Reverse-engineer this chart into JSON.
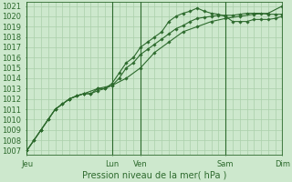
{
  "bg_color": "#cde8cd",
  "grid_color": "#aacfaa",
  "line_color": "#2d6a2d",
  "marker_color": "#2d6a2d",
  "ylabel_ticks": [
    1007,
    1008,
    1009,
    1010,
    1011,
    1012,
    1013,
    1014,
    1015,
    1016,
    1017,
    1018,
    1019,
    1020,
    1021
  ],
  "ylim": [
    1006.6,
    1021.4
  ],
  "xlabel": "Pression niveau de la mer( hPa )",
  "xlabel_fontsize": 7,
  "tick_fontsize": 6,
  "day_labels": [
    "Jeu",
    "Lun",
    "Ven",
    "Sam",
    "Dim"
  ],
  "day_positions": [
    0,
    72,
    96,
    168,
    216
  ],
  "total_hours": 216,
  "series1_x": [
    0,
    6,
    12,
    18,
    24,
    30,
    36,
    42,
    48,
    54,
    60,
    66,
    72,
    78,
    84,
    90,
    96,
    102,
    108,
    114,
    120,
    126,
    132,
    138,
    144,
    150,
    156,
    162,
    168,
    174,
    180,
    186,
    192,
    198,
    204,
    210,
    216
  ],
  "series1_y": [
    1007,
    1008,
    1009,
    1010.0,
    1011,
    1011.5,
    1012,
    1012.3,
    1012.5,
    1012.5,
    1012.8,
    1013.0,
    1013.3,
    1014.0,
    1015.0,
    1015.5,
    1016.3,
    1016.8,
    1017.3,
    1017.8,
    1018.3,
    1018.8,
    1019.1,
    1019.5,
    1019.8,
    1019.9,
    1020.0,
    1020.1,
    1020.1,
    1020.1,
    1020.2,
    1020.3,
    1020.3,
    1020.3,
    1020.2,
    1020.2,
    1020.2
  ],
  "series2_x": [
    0,
    6,
    12,
    18,
    24,
    30,
    36,
    42,
    48,
    54,
    60,
    66,
    72,
    78,
    84,
    90,
    96,
    102,
    108,
    114,
    120,
    126,
    132,
    138,
    144,
    150,
    156,
    162,
    168,
    174,
    180,
    186,
    192,
    198,
    204,
    210,
    216
  ],
  "series2_y": [
    1007,
    1008,
    1009,
    1010.0,
    1011,
    1011.5,
    1012,
    1012.3,
    1012.5,
    1012.5,
    1013.0,
    1013.0,
    1013.5,
    1014.5,
    1015.5,
    1016.0,
    1017.0,
    1017.5,
    1018.0,
    1018.5,
    1019.5,
    1020.0,
    1020.3,
    1020.5,
    1020.8,
    1020.5,
    1020.3,
    1020.2,
    1020.0,
    1019.5,
    1019.5,
    1019.5,
    1019.7,
    1019.7,
    1019.7,
    1019.8,
    1020.0
  ],
  "series3_x": [
    0,
    12,
    24,
    36,
    48,
    60,
    72,
    84,
    96,
    108,
    120,
    132,
    144,
    156,
    168,
    180,
    192,
    204,
    216
  ],
  "series3_y": [
    1007,
    1009,
    1011,
    1012,
    1012.5,
    1013,
    1013.3,
    1014,
    1015,
    1016.5,
    1017.5,
    1018.5,
    1019.0,
    1019.5,
    1019.8,
    1020.0,
    1020.2,
    1020.3,
    1021.0
  ]
}
